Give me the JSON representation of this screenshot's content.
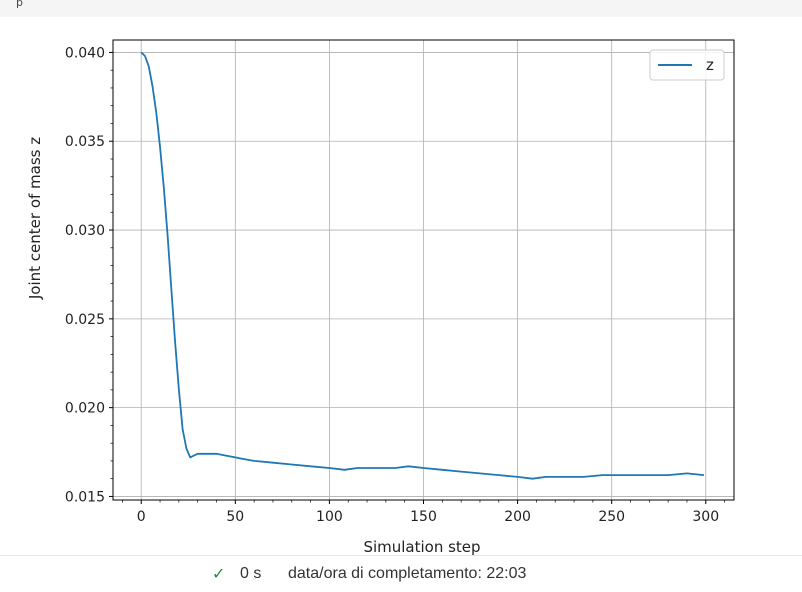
{
  "output_cell": {
    "marker": "p"
  },
  "status": {
    "duration": "0 s",
    "completed_label": "data/ora di completamento: 22:03",
    "check_icon": "check-icon",
    "check_color": "#1e8e3e"
  },
  "chart_data": {
    "type": "line",
    "xlabel": "Simulation step",
    "ylabel": "Joint center of mass z",
    "xlim": [
      -15,
      315
    ],
    "ylim": [
      0.0148,
      0.0407
    ],
    "xticks": [
      0,
      50,
      100,
      150,
      200,
      250,
      300
    ],
    "xtick_labels": [
      "0",
      "50",
      "100",
      "150",
      "200",
      "250",
      "300"
    ],
    "yticks": [
      0.015,
      0.02,
      0.025,
      0.03,
      0.035,
      0.04
    ],
    "ytick_labels": [
      "0.015",
      "0.020",
      "0.025",
      "0.030",
      "0.035",
      "0.040"
    ],
    "grid": true,
    "legend_position": "top-right",
    "series": [
      {
        "name": "z",
        "color": "#1f77b4",
        "x": [
          0,
          2,
          4,
          6,
          8,
          10,
          12,
          14,
          16,
          18,
          20,
          22,
          24,
          26,
          28,
          30,
          35,
          40,
          45,
          50,
          55,
          60,
          70,
          80,
          90,
          100,
          108,
          115,
          125,
          135,
          142,
          150,
          160,
          170,
          180,
          190,
          200,
          208,
          215,
          225,
          235,
          245,
          255,
          262,
          270,
          280,
          290,
          299
        ],
        "y": [
          0.04,
          0.0398,
          0.0392,
          0.0381,
          0.0366,
          0.0347,
          0.0324,
          0.0297,
          0.0267,
          0.0237,
          0.021,
          0.0188,
          0.0177,
          0.0172,
          0.0173,
          0.0174,
          0.0174,
          0.0174,
          0.0173,
          0.0172,
          0.0171,
          0.017,
          0.0169,
          0.0168,
          0.0167,
          0.0166,
          0.0165,
          0.0166,
          0.0166,
          0.0166,
          0.0167,
          0.0166,
          0.0165,
          0.0164,
          0.0163,
          0.0162,
          0.0161,
          0.016,
          0.0161,
          0.0161,
          0.0161,
          0.0162,
          0.0162,
          0.0162,
          0.0162,
          0.0162,
          0.0163,
          0.0162
        ]
      }
    ]
  }
}
